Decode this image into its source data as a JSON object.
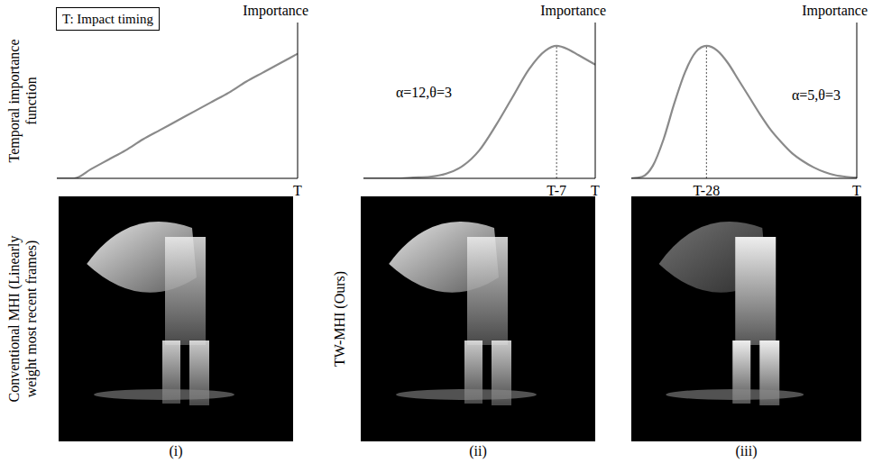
{
  "legend_box": "T: Impact timing",
  "row_labels": {
    "top": "Temporal importance function",
    "conventional": "Conventional MHI (Linearly weight most recent frames)",
    "ours": "TW-MHI (Ours)"
  },
  "panel_labels": [
    "(i)",
    "(ii)",
    "(iii)"
  ],
  "chart_data": [
    {
      "type": "line",
      "y_label": "Importance",
      "x": [
        -42,
        -39,
        -36,
        -33,
        -30,
        -27,
        -24,
        -21,
        -18,
        -15,
        -12,
        -9,
        -6,
        -3,
        0
      ],
      "values": [
        0,
        0,
        0.06,
        0.12,
        0.18,
        0.25,
        0.31,
        0.37,
        0.43,
        0.49,
        0.55,
        0.62,
        0.68,
        0.74,
        0.8
      ],
      "color": "#8a8a8a",
      "xlim": [
        -42,
        0
      ],
      "xticks": [
        {
          "value": 0,
          "label": "T"
        }
      ],
      "ylim": [
        0,
        1
      ],
      "yticks": [],
      "tick_labels": "x",
      "grid": false,
      "annotations": []
    },
    {
      "type": "line",
      "y_label": "Importance",
      "x": [
        -42,
        -36,
        -33,
        -30,
        -27,
        -24,
        -21,
        -18,
        -15,
        -12,
        -9,
        -7,
        -5,
        -3,
        -1,
        0
      ],
      "values": [
        0,
        0,
        0.005,
        0.01,
        0.03,
        0.08,
        0.18,
        0.34,
        0.52,
        0.7,
        0.82,
        0.85,
        0.83,
        0.79,
        0.75,
        0.73
      ],
      "color": "#8a8a8a",
      "xlim": [
        -42,
        0
      ],
      "xticks": [
        {
          "value": -7,
          "label": "T-7"
        },
        {
          "value": 0,
          "label": "T"
        }
      ],
      "ylim": [
        0,
        1
      ],
      "yticks": [],
      "tick_labels": "x",
      "grid": false,
      "annotations": [
        "α=12,θ=3"
      ]
    },
    {
      "type": "line",
      "y_label": "Importance",
      "x": [
        -42,
        -40,
        -38,
        -36,
        -34,
        -32,
        -30,
        -28,
        -26,
        -24,
        -22,
        -20,
        -18,
        -16,
        -14,
        -12,
        -10,
        -8,
        -6,
        -4,
        -2,
        0
      ],
      "values": [
        0,
        0.01,
        0.08,
        0.25,
        0.48,
        0.68,
        0.81,
        0.85,
        0.82,
        0.74,
        0.63,
        0.52,
        0.41,
        0.31,
        0.23,
        0.16,
        0.11,
        0.07,
        0.04,
        0.02,
        0.01,
        0.005
      ],
      "color": "#8a8a8a",
      "xlim": [
        -42,
        0
      ],
      "xticks": [
        {
          "value": -28,
          "label": "T-28"
        },
        {
          "value": 0,
          "label": "T"
        }
      ],
      "ylim": [
        0,
        1
      ],
      "yticks": [],
      "tick_labels": "x",
      "grid": false,
      "annotations": [
        "α=5,θ=3"
      ]
    }
  ]
}
